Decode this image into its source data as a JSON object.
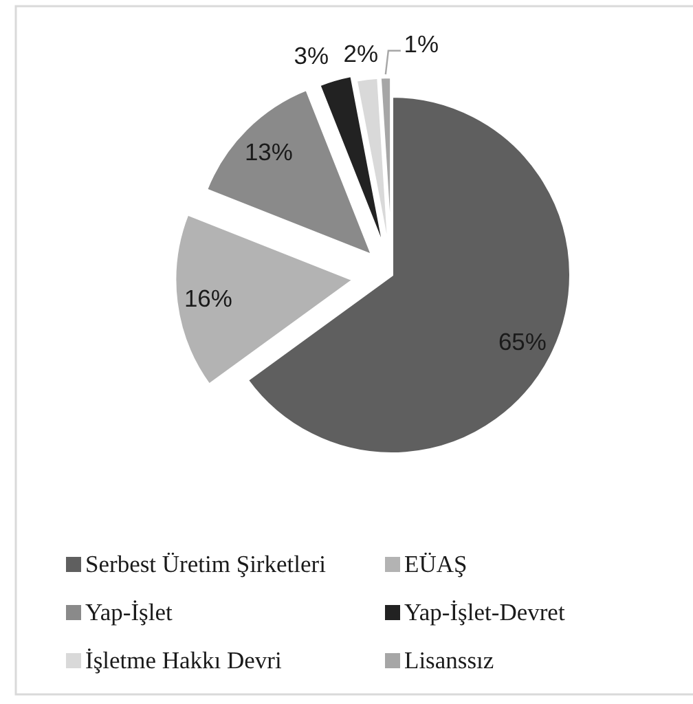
{
  "chart_data": {
    "type": "pie",
    "categories": [
      "Serbest Üretim Şirketleri",
      "EÜAŞ",
      "Yap-İşlet",
      "Yap-İşlet-Devret",
      "İşletme Hakkı Devri",
      "Lisanssız"
    ],
    "values": [
      65,
      16,
      13,
      3,
      2,
      1
    ],
    "colors": [
      "#5f5f5f",
      "#b3b3b3",
      "#8a8a8a",
      "#222222",
      "#d9d9d9",
      "#a6a6a6"
    ],
    "value_labels": [
      "65%",
      "16%",
      "13%",
      "3%",
      "2%",
      "1%"
    ],
    "legend": "bottom"
  }
}
